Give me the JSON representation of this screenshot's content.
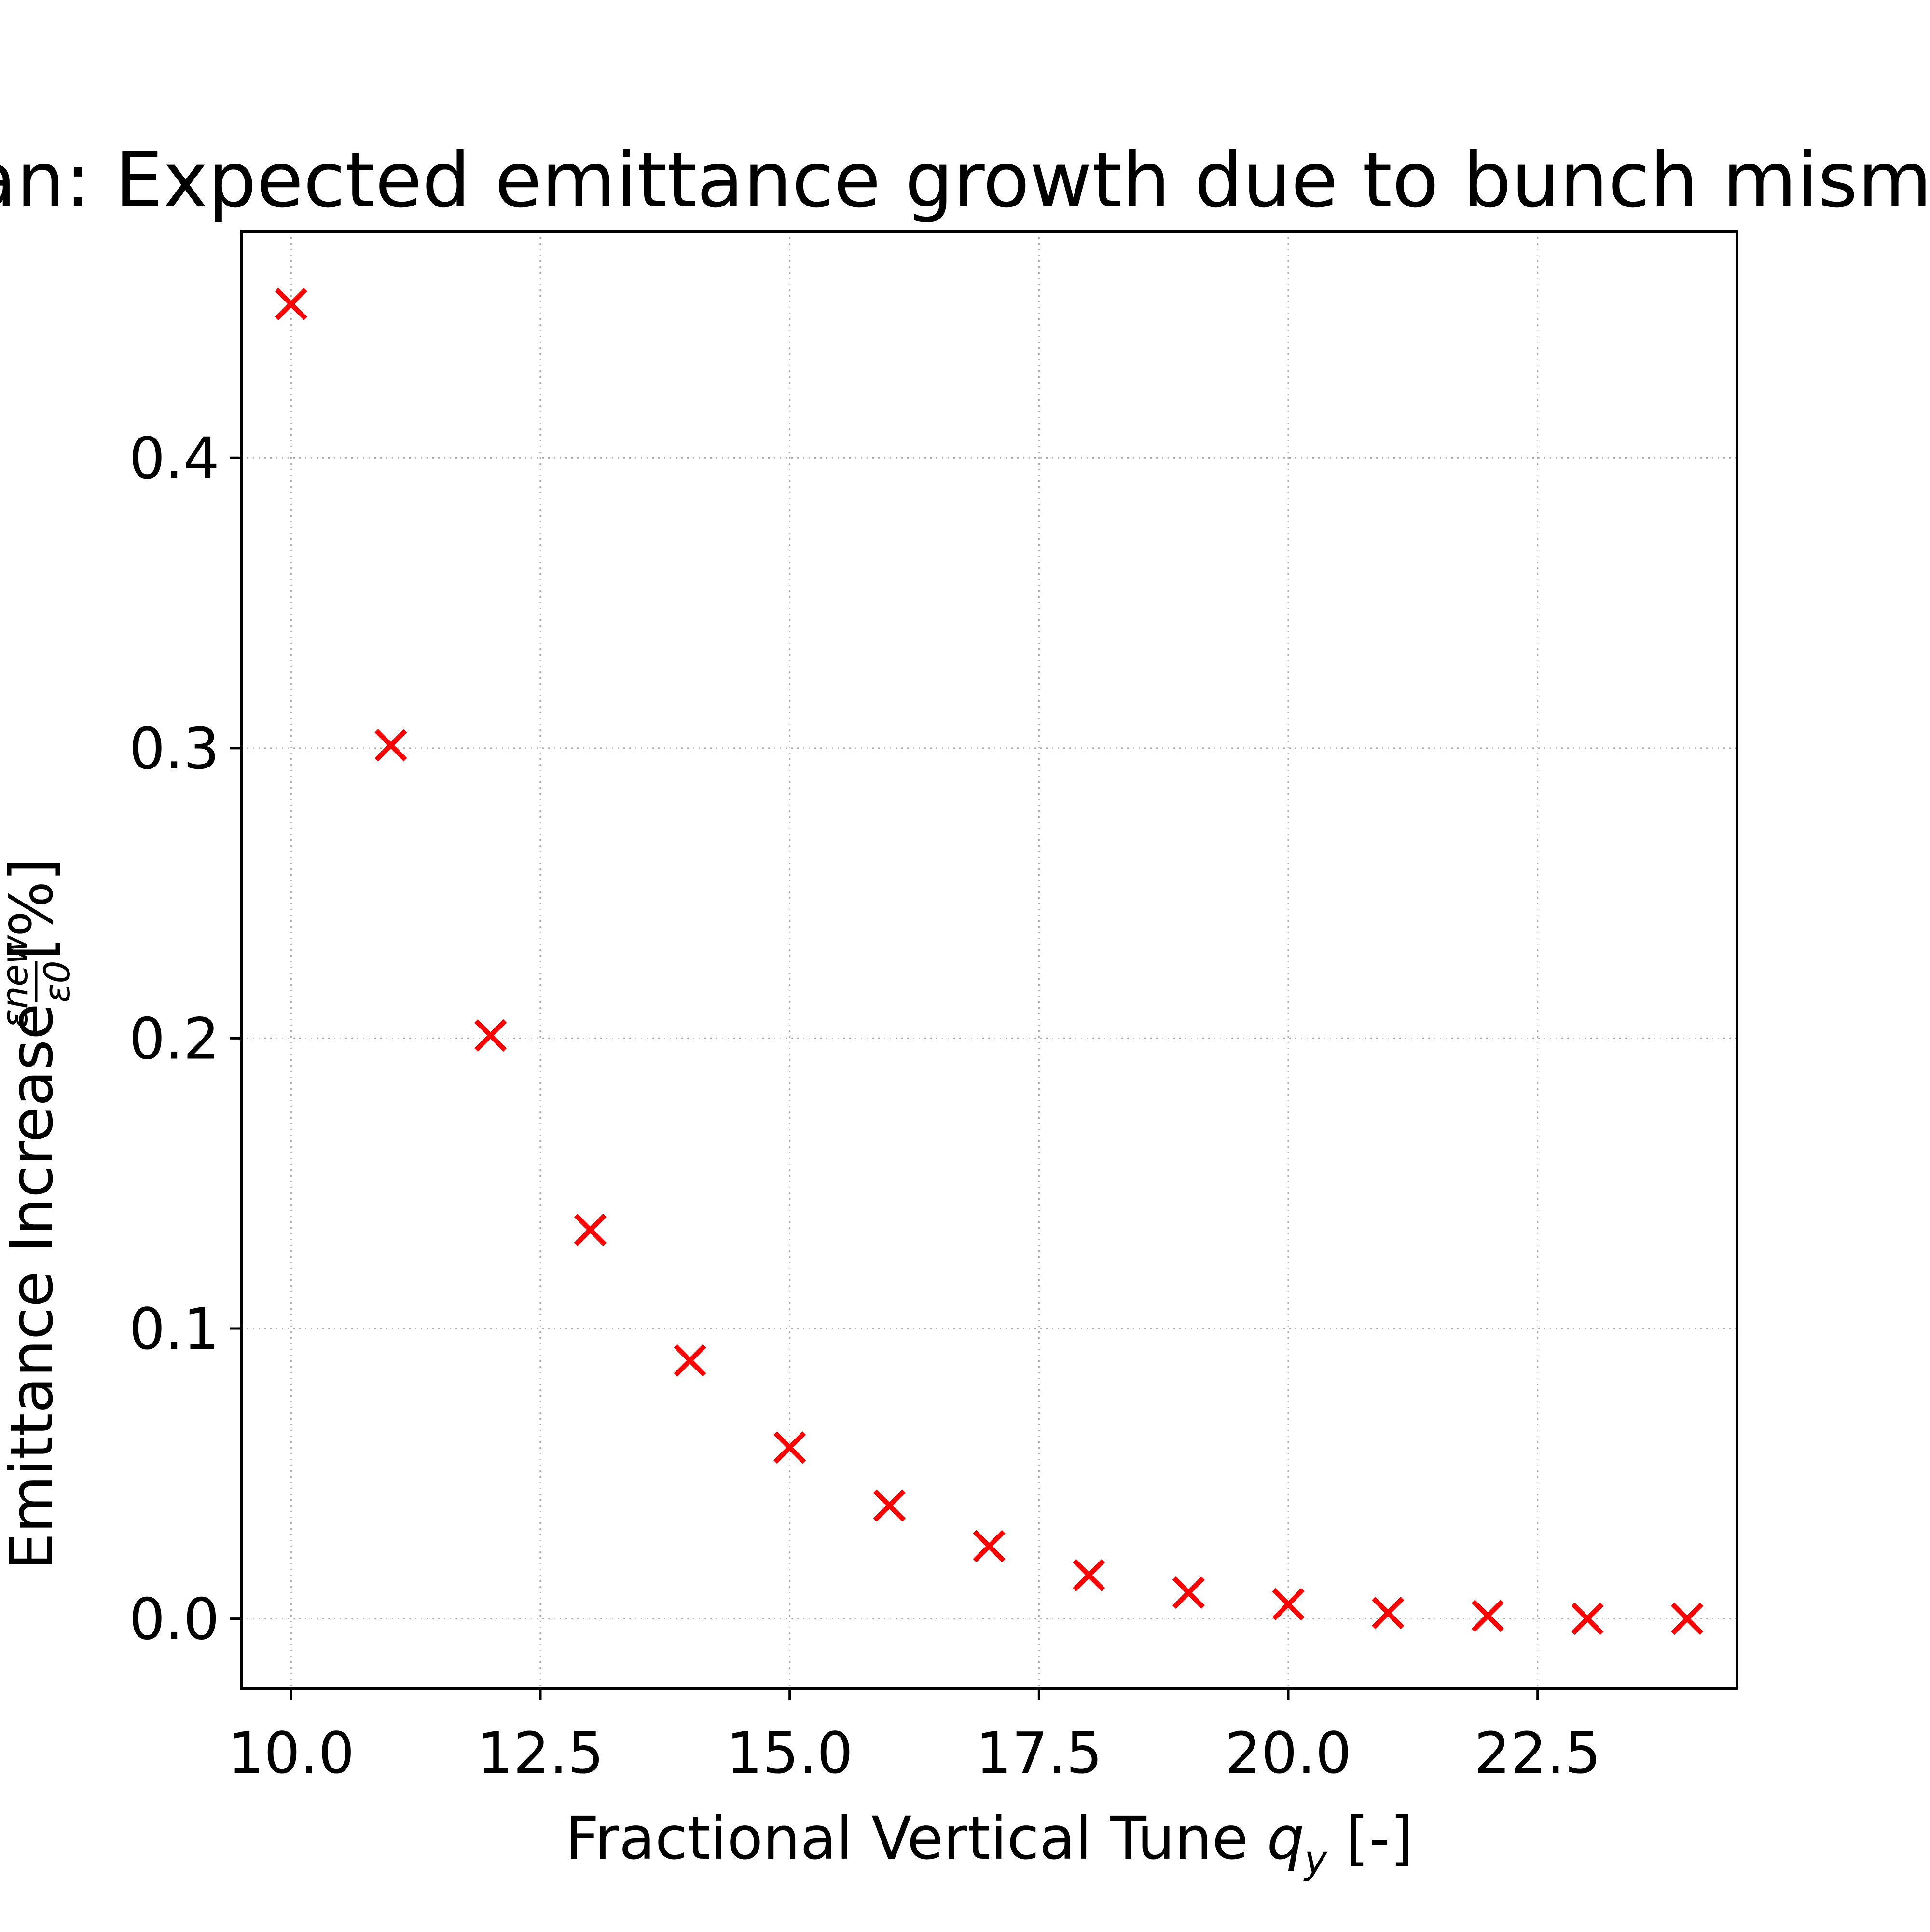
{
  "chart_data": {
    "type": "scatter",
    "title": "Scan: Expected emittance growth due to bunch mismatch",
    "xlabel": {
      "prefix": "Fractional Vertical Tune ",
      "var": "q",
      "sub": "y",
      "suffix": " [-]"
    },
    "ylabel": {
      "prefix": "Emittance Increase ",
      "num": "εnew",
      "den": "ε0",
      "suffix": " [%]"
    },
    "xlim": [
      9.5,
      24.5
    ],
    "ylim": [
      -0.024,
      0.478
    ],
    "xticks": [
      10.0,
      12.5,
      15.0,
      17.5,
      20.0,
      22.5
    ],
    "xtick_labels": [
      "10.0",
      "12.5",
      "15.0",
      "17.5",
      "20.0",
      "22.5"
    ],
    "yticks": [
      0.0,
      0.1,
      0.2,
      0.3,
      0.4
    ],
    "ytick_labels": [
      "0.0",
      "0.1",
      "0.2",
      "0.3",
      "0.4"
    ],
    "grid": true,
    "marker": "x",
    "color": "#ff0000",
    "x": [
      10,
      11,
      12,
      13,
      14,
      15,
      16,
      17,
      18,
      19,
      20,
      21,
      22,
      23,
      24
    ],
    "y": [
      0.453,
      0.301,
      0.201,
      0.134,
      0.089,
      0.059,
      0.039,
      0.025,
      0.015,
      0.009,
      0.005,
      0.002,
      0.001,
      0.0,
      0.0
    ]
  }
}
